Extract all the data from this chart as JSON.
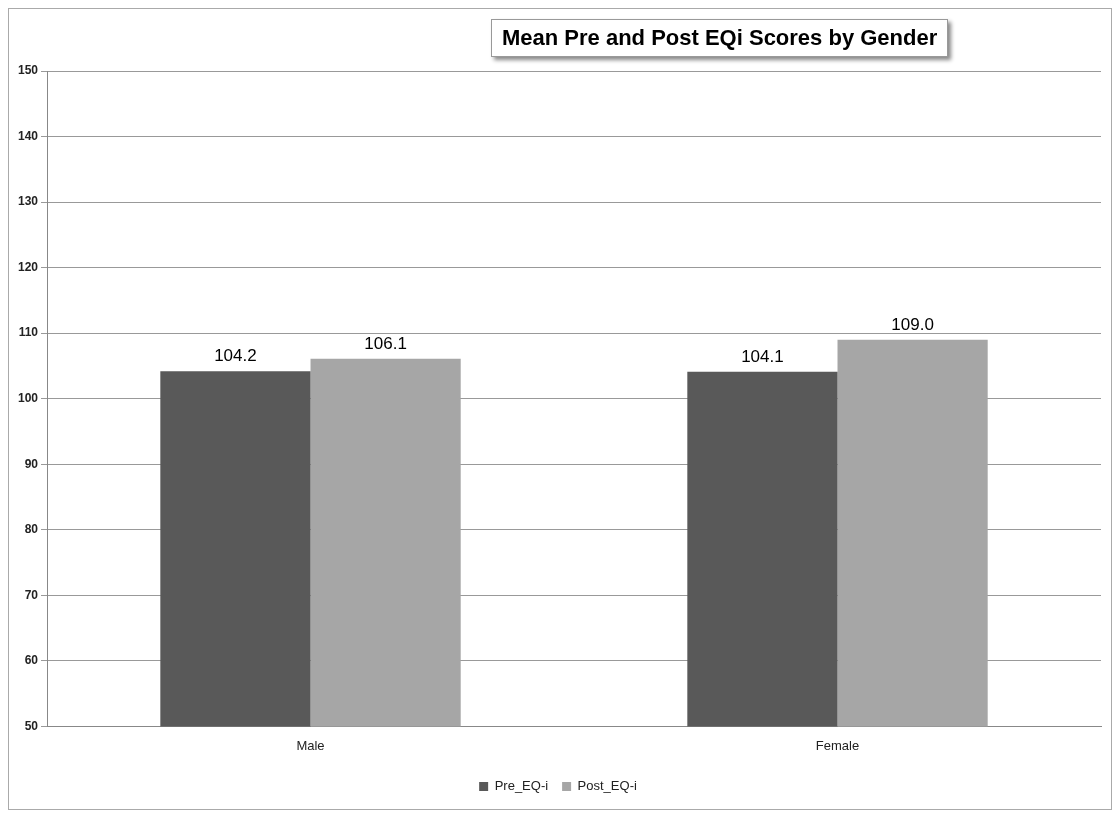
{
  "chart_data": {
    "type": "bar",
    "title": "Mean Pre and Post EQi Scores by Gender",
    "categories": [
      "Male",
      "Female"
    ],
    "series": [
      {
        "name": "Pre_EQ-i",
        "color": "#595959",
        "values": [
          104.2,
          104.1
        ],
        "value_labels": [
          "104.2",
          "104.1"
        ]
      },
      {
        "name": "Post_EQ-i",
        "color": "#a6a6a6",
        "values": [
          106.1,
          109.0
        ],
        "value_labels": [
          "106.1",
          "109.0"
        ]
      }
    ],
    "ylim": [
      50,
      150
    ],
    "yticks": [
      50,
      60,
      70,
      80,
      90,
      100,
      110,
      120,
      130,
      140,
      150
    ],
    "grid": "y",
    "legend": "bottom"
  }
}
